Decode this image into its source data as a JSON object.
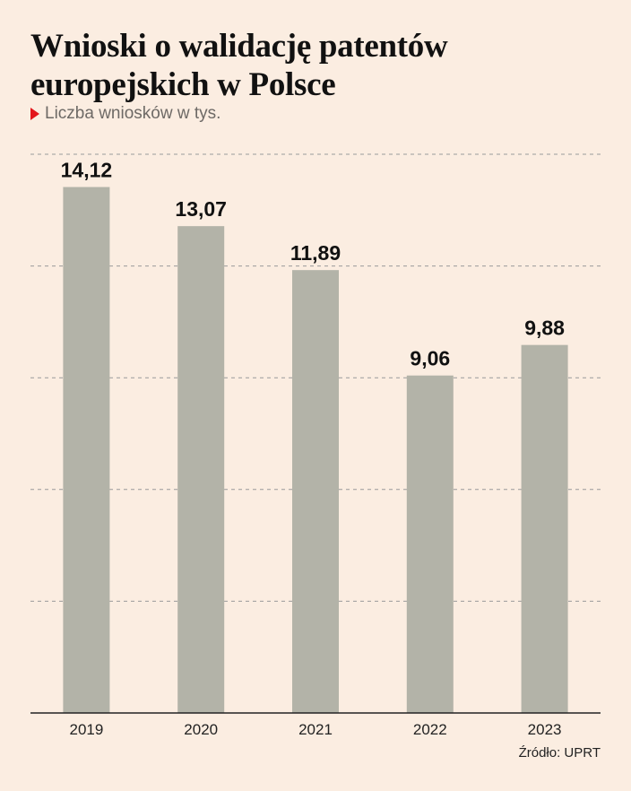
{
  "header": {
    "title": "Wnioski o walidację patentów europejskich w Polsce",
    "subtitle": "Liczba wniosków w tys."
  },
  "source": "Źródło: UPRT",
  "colors": {
    "background": "#fbede1",
    "bar": "#b3b3a8",
    "accent": "#e3161b",
    "grid": "#9a9a9a"
  },
  "chart_data": {
    "type": "bar",
    "title": "Wnioski o walidację patentów europejskich w Polsce",
    "subtitle": "Liczba wniosków w tys.",
    "categories": [
      "2019",
      "2020",
      "2021",
      "2022",
      "2023"
    ],
    "values": [
      14.12,
      13.07,
      11.89,
      9.06,
      9.88
    ],
    "value_labels": [
      "14,12",
      "13,07",
      "11,89",
      "9,06",
      "9,88"
    ],
    "ylim": [
      0,
      15
    ],
    "y_ticks": [
      0,
      3,
      6,
      9,
      12,
      15
    ],
    "grid": "dashed horizontal",
    "legend": "none"
  }
}
